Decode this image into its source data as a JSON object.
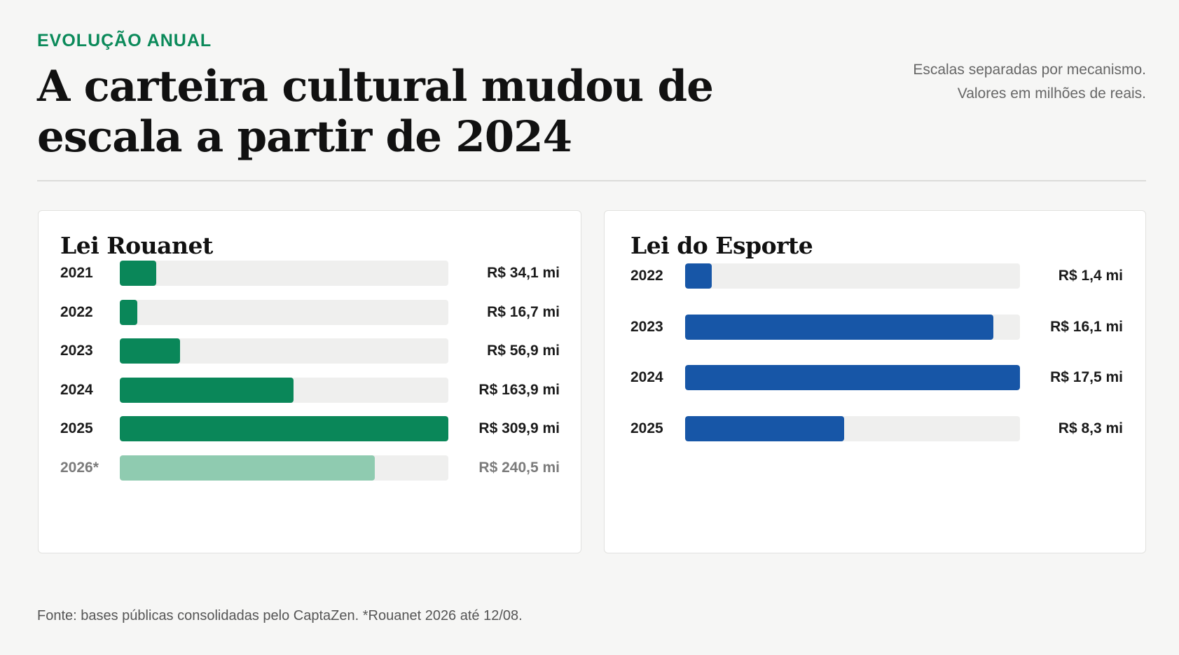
{
  "header": {
    "eyebrow": "EVOLUÇÃO ANUAL",
    "title": "A carteira cultural mudou de escala a partir de 2024",
    "note_line1": "Escalas separadas por mecanismo.",
    "note_line2": "Valores em milhões de reais."
  },
  "footer": {
    "source": "Fonte: bases públicas consolidadas pelo CaptaZen. *Rouanet 2026 até 12/08."
  },
  "colors": {
    "rouanet": "#0a8759",
    "rouanet_projected": "#8fcbb0",
    "esporte": "#1756a7"
  },
  "chart_data": [
    {
      "type": "bar",
      "orientation": "horizontal",
      "title": "Lei Rouanet",
      "unit": "R$ mi",
      "xlim": [
        0,
        309.9
      ],
      "grid": false,
      "bars": [
        {
          "category": "2021",
          "value": 34.1,
          "label": "R$ 34,1 mi",
          "projected": false
        },
        {
          "category": "2022",
          "value": 16.7,
          "label": "R$ 16,7 mi",
          "projected": false
        },
        {
          "category": "2023",
          "value": 56.9,
          "label": "R$ 56,9 mi",
          "projected": false
        },
        {
          "category": "2024",
          "value": 163.9,
          "label": "R$ 163,9 mi",
          "projected": false
        },
        {
          "category": "2025",
          "value": 309.9,
          "label": "R$ 309,9 mi",
          "projected": false
        },
        {
          "category": "2026*",
          "value": 240.5,
          "label": "R$ 240,5 mi",
          "projected": true
        }
      ]
    },
    {
      "type": "bar",
      "orientation": "horizontal",
      "title": "Lei do Esporte",
      "unit": "R$ mi",
      "xlim": [
        0,
        17.5
      ],
      "grid": false,
      "bars": [
        {
          "category": "2022",
          "value": 1.4,
          "label": "R$ 1,4 mi",
          "projected": false
        },
        {
          "category": "2023",
          "value": 16.1,
          "label": "R$ 16,1 mi",
          "projected": false
        },
        {
          "category": "2024",
          "value": 17.5,
          "label": "R$ 17,5 mi",
          "projected": false
        },
        {
          "category": "2025",
          "value": 8.3,
          "label": "R$ 8,3 mi",
          "projected": false
        }
      ]
    }
  ]
}
